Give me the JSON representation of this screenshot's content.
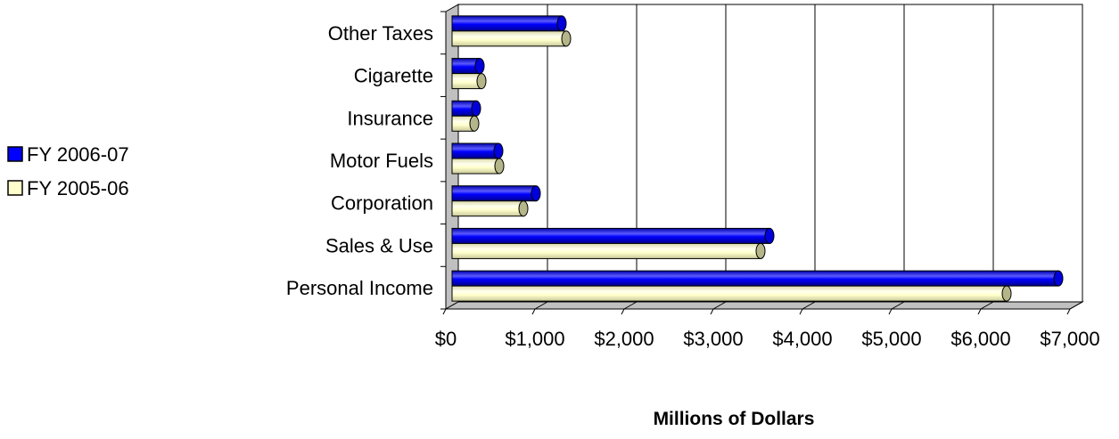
{
  "chart_data": {
    "type": "bar",
    "orientation": "horizontal",
    "title": "",
    "xlabel": "Millions of Dollars",
    "ylabel": "",
    "categories": [
      "Personal Income",
      "Sales & Use",
      "Corporation",
      "Motor Fuels",
      "Insurance",
      "Cigarette",
      "Other Taxes"
    ],
    "series": [
      {
        "name": "FY 2006-07",
        "values": [
          6800,
          3560,
          940,
          520,
          270,
          310,
          1230
        ],
        "color": "#0000ff"
      },
      {
        "name": "FY 2005-06",
        "values": [
          6220,
          3460,
          800,
          530,
          250,
          330,
          1280
        ],
        "color": "#ffffcc"
      }
    ],
    "xlim": [
      0,
      7000
    ],
    "xticks": [
      0,
      1000,
      2000,
      3000,
      4000,
      5000,
      6000,
      7000
    ],
    "tick_labels": [
      "$0",
      "$1,000",
      "$2,000",
      "$3,000",
      "$4,000",
      "$5,000",
      "$6,000",
      "$7,000"
    ],
    "grid": true,
    "legend_position": "left",
    "style": "3d-cylinder"
  }
}
